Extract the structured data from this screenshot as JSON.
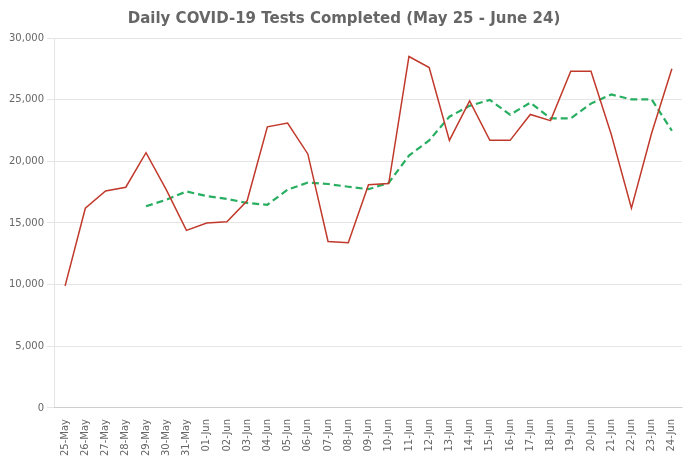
{
  "chart_data": {
    "type": "line",
    "title": "Daily COVID-19 Tests Completed (May 25 - June 24)",
    "categories": [
      "25-May",
      "26-May",
      "27-May",
      "28-May",
      "29-May",
      "30-May",
      "31-May",
      "01-Jun",
      "02-Jun",
      "03-Jun",
      "04-Jun",
      "05-Jun",
      "06-Jun",
      "07-Jun",
      "08-Jun",
      "09-Jun",
      "10-Jun",
      "11-Jun",
      "12-Jun",
      "13-Jun",
      "14-Jun",
      "15-Jun",
      "16-Jun",
      "17-Jun",
      "18-Jun",
      "19-Jun",
      "20-Jun",
      "21-Jun",
      "22-Jun",
      "23-Jun",
      "24-Jun"
    ],
    "series": [
      {
        "color": "#c0392b",
        "line_style": "solid",
        "values": [
          9900,
          16200,
          17600,
          17900,
          20700,
          17700,
          14400,
          15000,
          15100,
          16800,
          22800,
          23100,
          20600,
          13500,
          13400,
          18100,
          18200,
          28500,
          27600,
          21700,
          24900,
          21700,
          21700,
          23800,
          23300,
          27300,
          27300,
          22200,
          16200,
          22300,
          27500
        ]
      },
      {
        "color": "#27ae60",
        "line_style": "dashed",
        "values": [
          null,
          null,
          null,
          null,
          16360,
          16880,
          17560,
          17180,
          16960,
          16620,
          16480,
          17700,
          18280,
          18160,
          17940,
          17740,
          18260,
          20460,
          21700,
          23620,
          24500,
          24980,
          23780,
          24760,
          23480,
          23480,
          24680,
          25420,
          25020,
          25020,
          22480
        ]
      }
    ],
    "ylim": [
      0,
      30000
    ],
    "yticks": [
      0,
      {
        "value": 5000,
        "label": "5,000"
      },
      {
        "value": 10000,
        "label": "10,000"
      },
      {
        "value": 15000,
        "label": "15,000"
      },
      {
        "value": 20000,
        "label": "20,000"
      },
      {
        "value": 25000,
        "label": "25,000"
      },
      {
        "value": 30000,
        "label": "30,000"
      }
    ],
    "grid": "y"
  }
}
